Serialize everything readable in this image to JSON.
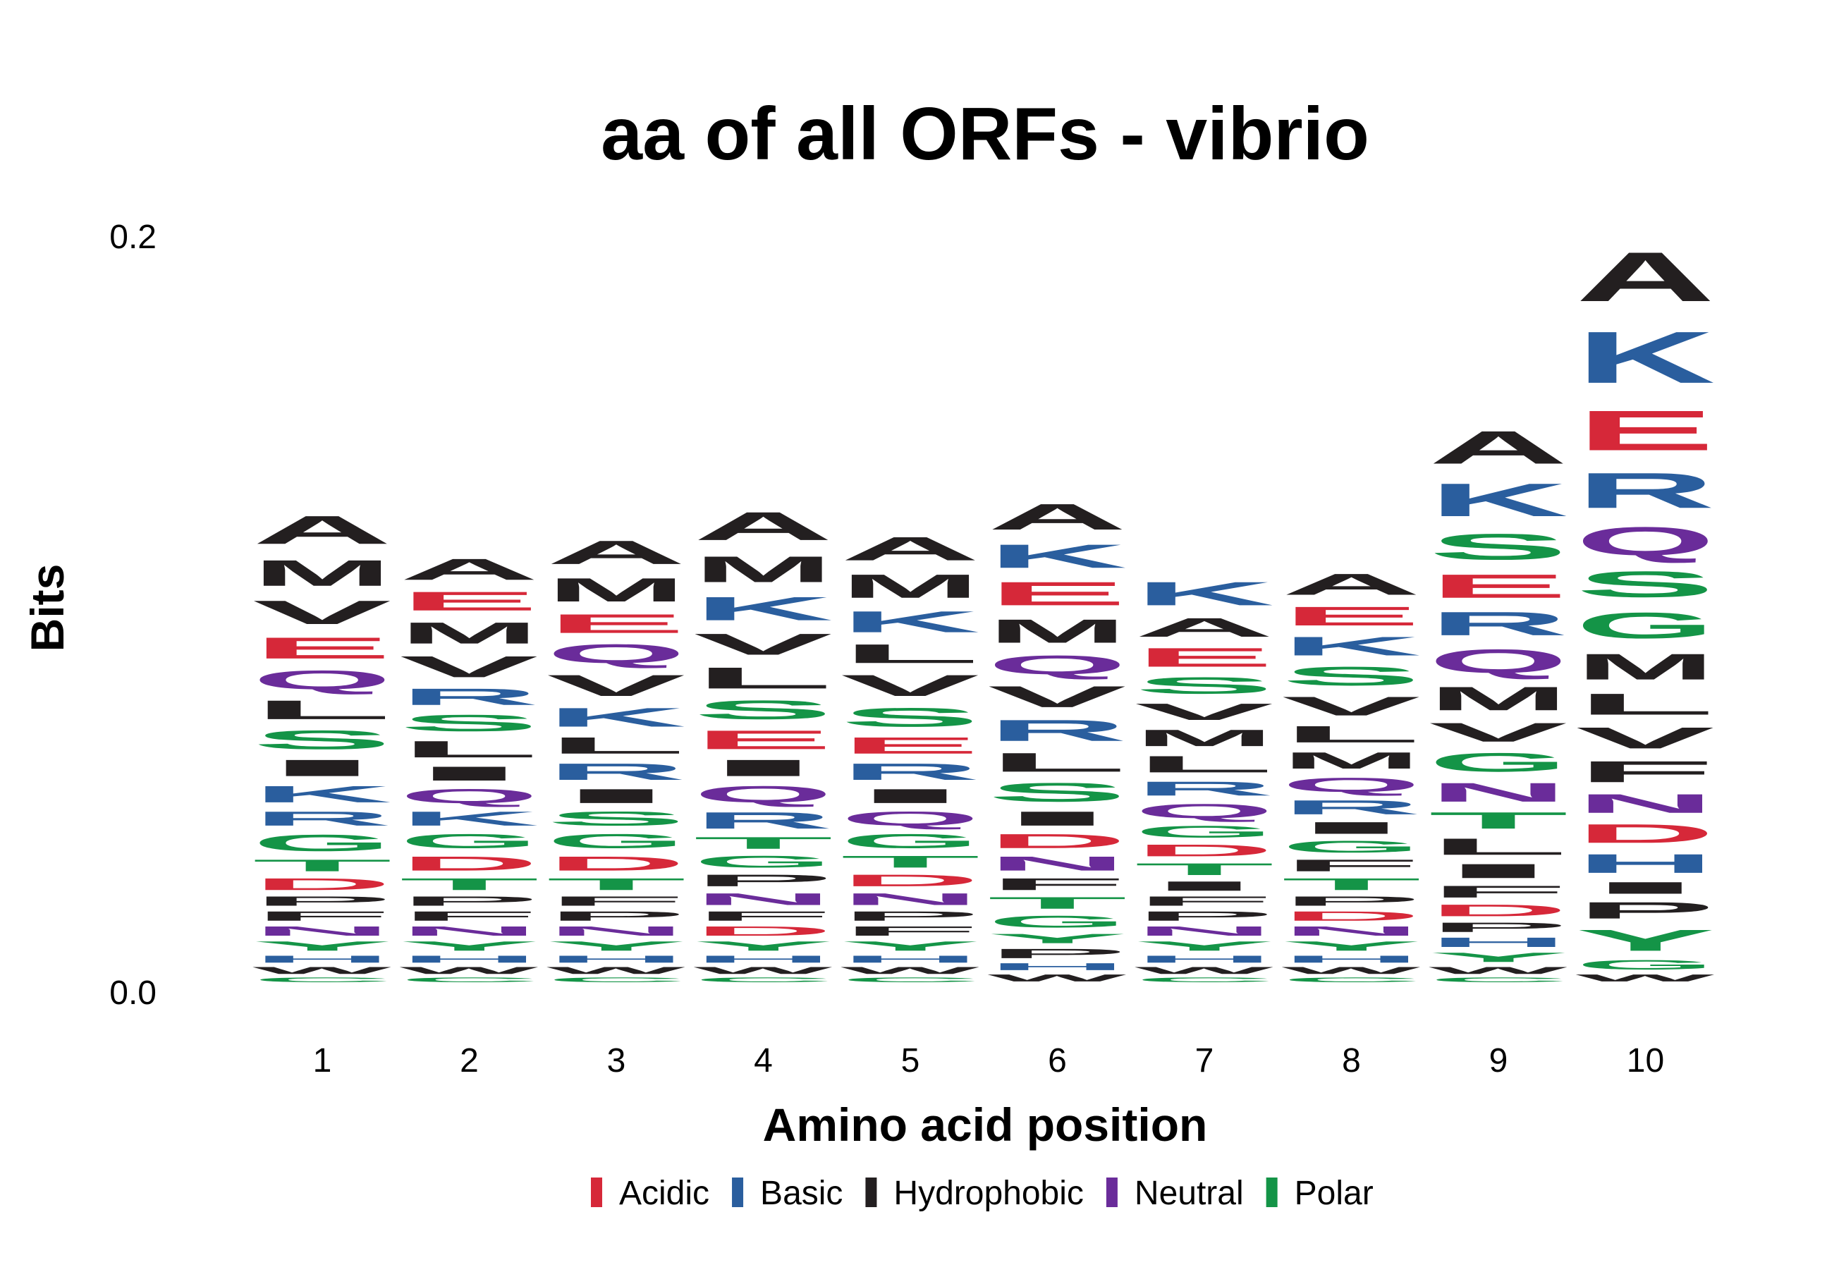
{
  "chart_data": {
    "type": "sequence-logo",
    "title": "aa of all ORFs - vibrio",
    "xlabel": "Amino acid position",
    "ylabel": "Bits",
    "ylim": [
      0,
      0.2
    ],
    "y_ticks": [
      "0.0",
      "0.2"
    ],
    "positions": [
      "1",
      "2",
      "3",
      "4",
      "5",
      "6",
      "7",
      "8",
      "9",
      "10"
    ],
    "color_scheme": [
      {
        "name": "Acidic",
        "color": "#d62839"
      },
      {
        "name": "Basic",
        "color": "#2a5e9e"
      },
      {
        "name": "Hydrophobic",
        "color": "#231f20"
      },
      {
        "name": "Neutral",
        "color": "#6a2c9a"
      },
      {
        "name": "Polar",
        "color": "#149447"
      }
    ],
    "residue_classes": {
      "D": "Acidic",
      "E": "Acidic",
      "K": "Basic",
      "R": "Basic",
      "H": "Basic",
      "A": "Hydrophobic",
      "M": "Hydrophobic",
      "V": "Hydrophobic",
      "L": "Hydrophobic",
      "I": "Hydrophobic",
      "F": "Hydrophobic",
      "P": "Hydrophobic",
      "W": "Hydrophobic",
      "Q": "Neutral",
      "N": "Neutral",
      "S": "Polar",
      "T": "Polar",
      "G": "Polar",
      "Y": "Polar",
      "C": "Polar"
    },
    "stacks": [
      {
        "position": 1,
        "letters": [
          {
            "aa": "C",
            "bits": 0.002
          },
          {
            "aa": "W",
            "bits": 0.003
          },
          {
            "aa": "H",
            "bits": 0.003
          },
          {
            "aa": "Y",
            "bits": 0.004
          },
          {
            "aa": "N",
            "bits": 0.004
          },
          {
            "aa": "F",
            "bits": 0.004
          },
          {
            "aa": "P",
            "bits": 0.004
          },
          {
            "aa": "D",
            "bits": 0.005
          },
          {
            "aa": "T",
            "bits": 0.005
          },
          {
            "aa": "G",
            "bits": 0.007
          },
          {
            "aa": "R",
            "bits": 0.006
          },
          {
            "aa": "K",
            "bits": 0.007
          },
          {
            "aa": "I",
            "bits": 0.007
          },
          {
            "aa": "S",
            "bits": 0.008
          },
          {
            "aa": "L",
            "bits": 0.008
          },
          {
            "aa": "Q",
            "bits": 0.008
          },
          {
            "aa": "E",
            "bits": 0.009
          },
          {
            "aa": "V",
            "bits": 0.01
          },
          {
            "aa": "M",
            "bits": 0.011
          },
          {
            "aa": "A",
            "bits": 0.012
          }
        ]
      },
      {
        "position": 2,
        "letters": [
          {
            "aa": "C",
            "bits": 0.002
          },
          {
            "aa": "W",
            "bits": 0.003
          },
          {
            "aa": "H",
            "bits": 0.003
          },
          {
            "aa": "Y",
            "bits": 0.004
          },
          {
            "aa": "N",
            "bits": 0.004
          },
          {
            "aa": "F",
            "bits": 0.004
          },
          {
            "aa": "P",
            "bits": 0.004
          },
          {
            "aa": "T",
            "bits": 0.005
          },
          {
            "aa": "D",
            "bits": 0.006
          },
          {
            "aa": "G",
            "bits": 0.006
          },
          {
            "aa": "K",
            "bits": 0.006
          },
          {
            "aa": "Q",
            "bits": 0.006
          },
          {
            "aa": "I",
            "bits": 0.006
          },
          {
            "aa": "L",
            "bits": 0.007
          },
          {
            "aa": "S",
            "bits": 0.007
          },
          {
            "aa": "R",
            "bits": 0.007
          },
          {
            "aa": "V",
            "bits": 0.009
          },
          {
            "aa": "M",
            "bits": 0.009
          },
          {
            "aa": "E",
            "bits": 0.008
          },
          {
            "aa": "A",
            "bits": 0.009
          }
        ]
      },
      {
        "position": 3,
        "letters": [
          {
            "aa": "C",
            "bits": 0.002
          },
          {
            "aa": "W",
            "bits": 0.003
          },
          {
            "aa": "H",
            "bits": 0.003
          },
          {
            "aa": "Y",
            "bits": 0.004
          },
          {
            "aa": "N",
            "bits": 0.004
          },
          {
            "aa": "P",
            "bits": 0.004
          },
          {
            "aa": "F",
            "bits": 0.004
          },
          {
            "aa": "T",
            "bits": 0.005
          },
          {
            "aa": "D",
            "bits": 0.006
          },
          {
            "aa": "G",
            "bits": 0.006
          },
          {
            "aa": "S",
            "bits": 0.006
          },
          {
            "aa": "I",
            "bits": 0.006
          },
          {
            "aa": "R",
            "bits": 0.007
          },
          {
            "aa": "L",
            "bits": 0.007
          },
          {
            "aa": "K",
            "bits": 0.008
          },
          {
            "aa": "V",
            "bits": 0.009
          },
          {
            "aa": "Q",
            "bits": 0.008
          },
          {
            "aa": "E",
            "bits": 0.008
          },
          {
            "aa": "M",
            "bits": 0.01
          },
          {
            "aa": "A",
            "bits": 0.01
          }
        ]
      },
      {
        "position": 4,
        "letters": [
          {
            "aa": "C",
            "bits": 0.002
          },
          {
            "aa": "W",
            "bits": 0.003
          },
          {
            "aa": "H",
            "bits": 0.003
          },
          {
            "aa": "Y",
            "bits": 0.004
          },
          {
            "aa": "D",
            "bits": 0.004
          },
          {
            "aa": "F",
            "bits": 0.004
          },
          {
            "aa": "N",
            "bits": 0.005
          },
          {
            "aa": "P",
            "bits": 0.005
          },
          {
            "aa": "G",
            "bits": 0.005
          },
          {
            "aa": "T",
            "bits": 0.005
          },
          {
            "aa": "R",
            "bits": 0.007
          },
          {
            "aa": "Q",
            "bits": 0.007
          },
          {
            "aa": "I",
            "bits": 0.007
          },
          {
            "aa": "E",
            "bits": 0.008
          },
          {
            "aa": "S",
            "bits": 0.008
          },
          {
            "aa": "L",
            "bits": 0.009
          },
          {
            "aa": "V",
            "bits": 0.009
          },
          {
            "aa": "K",
            "bits": 0.01
          },
          {
            "aa": "M",
            "bits": 0.011
          },
          {
            "aa": "A",
            "bits": 0.012
          }
        ]
      },
      {
        "position": 5,
        "letters": [
          {
            "aa": "C",
            "bits": 0.002
          },
          {
            "aa": "W",
            "bits": 0.003
          },
          {
            "aa": "H",
            "bits": 0.003
          },
          {
            "aa": "Y",
            "bits": 0.004
          },
          {
            "aa": "F",
            "bits": 0.004
          },
          {
            "aa": "P",
            "bits": 0.004
          },
          {
            "aa": "N",
            "bits": 0.005
          },
          {
            "aa": "D",
            "bits": 0.005
          },
          {
            "aa": "T",
            "bits": 0.005
          },
          {
            "aa": "G",
            "bits": 0.006
          },
          {
            "aa": "Q",
            "bits": 0.006
          },
          {
            "aa": "I",
            "bits": 0.006
          },
          {
            "aa": "R",
            "bits": 0.007
          },
          {
            "aa": "E",
            "bits": 0.007
          },
          {
            "aa": "S",
            "bits": 0.008
          },
          {
            "aa": "V",
            "bits": 0.009
          },
          {
            "aa": "L",
            "bits": 0.008
          },
          {
            "aa": "K",
            "bits": 0.009
          },
          {
            "aa": "M",
            "bits": 0.01
          },
          {
            "aa": "A",
            "bits": 0.01
          }
        ]
      },
      {
        "position": 6,
        "letters": [
          {
            "aa": "W",
            "bits": 0.003
          },
          {
            "aa": "H",
            "bits": 0.003
          },
          {
            "aa": "P",
            "bits": 0.004
          },
          {
            "aa": "Y",
            "bits": 0.004
          },
          {
            "aa": "G",
            "bits": 0.005
          },
          {
            "aa": "T",
            "bits": 0.005
          },
          {
            "aa": "F",
            "bits": 0.005
          },
          {
            "aa": "N",
            "bits": 0.006
          },
          {
            "aa": "D",
            "bits": 0.006
          },
          {
            "aa": "I",
            "bits": 0.006
          },
          {
            "aa": "S",
            "bits": 0.008
          },
          {
            "aa": "L",
            "bits": 0.008
          },
          {
            "aa": "R",
            "bits": 0.009
          },
          {
            "aa": "V",
            "bits": 0.009
          },
          {
            "aa": "Q",
            "bits": 0.008
          },
          {
            "aa": "M",
            "bits": 0.01
          },
          {
            "aa": "E",
            "bits": 0.01
          },
          {
            "aa": "K",
            "bits": 0.01
          },
          {
            "aa": "A",
            "bits": 0.011
          }
        ]
      },
      {
        "position": 7,
        "letters": [
          {
            "aa": "C",
            "bits": 0.002
          },
          {
            "aa": "W",
            "bits": 0.003
          },
          {
            "aa": "H",
            "bits": 0.003
          },
          {
            "aa": "Y",
            "bits": 0.004
          },
          {
            "aa": "N",
            "bits": 0.004
          },
          {
            "aa": "P",
            "bits": 0.004
          },
          {
            "aa": "F",
            "bits": 0.004
          },
          {
            "aa": "I",
            "bits": 0.004
          },
          {
            "aa": "T",
            "bits": 0.005
          },
          {
            "aa": "D",
            "bits": 0.005
          },
          {
            "aa": "G",
            "bits": 0.005
          },
          {
            "aa": "Q",
            "bits": 0.006
          },
          {
            "aa": "R",
            "bits": 0.006
          },
          {
            "aa": "L",
            "bits": 0.007
          },
          {
            "aa": "M",
            "bits": 0.007
          },
          {
            "aa": "V",
            "bits": 0.007
          },
          {
            "aa": "S",
            "bits": 0.007
          },
          {
            "aa": "E",
            "bits": 0.008
          },
          {
            "aa": "A",
            "bits": 0.008
          },
          {
            "aa": "K",
            "bits": 0.01
          }
        ]
      },
      {
        "position": 8,
        "letters": [
          {
            "aa": "C",
            "bits": 0.002
          },
          {
            "aa": "W",
            "bits": 0.003
          },
          {
            "aa": "H",
            "bits": 0.003
          },
          {
            "aa": "Y",
            "bits": 0.004
          },
          {
            "aa": "N",
            "bits": 0.004
          },
          {
            "aa": "D",
            "bits": 0.004
          },
          {
            "aa": "P",
            "bits": 0.004
          },
          {
            "aa": "T",
            "bits": 0.005
          },
          {
            "aa": "F",
            "bits": 0.005
          },
          {
            "aa": "G",
            "bits": 0.005
          },
          {
            "aa": "I",
            "bits": 0.005
          },
          {
            "aa": "R",
            "bits": 0.006
          },
          {
            "aa": "Q",
            "bits": 0.006
          },
          {
            "aa": "M",
            "bits": 0.007
          },
          {
            "aa": "L",
            "bits": 0.007
          },
          {
            "aa": "V",
            "bits": 0.008
          },
          {
            "aa": "S",
            "bits": 0.008
          },
          {
            "aa": "K",
            "bits": 0.008
          },
          {
            "aa": "E",
            "bits": 0.008
          },
          {
            "aa": "A",
            "bits": 0.009
          }
        ]
      },
      {
        "position": 9,
        "letters": [
          {
            "aa": "C",
            "bits": 0.002
          },
          {
            "aa": "W",
            "bits": 0.003
          },
          {
            "aa": "Y",
            "bits": 0.004
          },
          {
            "aa": "H",
            "bits": 0.004
          },
          {
            "aa": "P",
            "bits": 0.004
          },
          {
            "aa": "D",
            "bits": 0.005
          },
          {
            "aa": "F",
            "bits": 0.005
          },
          {
            "aa": "I",
            "bits": 0.006
          },
          {
            "aa": "L",
            "bits": 0.007
          },
          {
            "aa": "T",
            "bits": 0.007
          },
          {
            "aa": "N",
            "bits": 0.008
          },
          {
            "aa": "G",
            "bits": 0.008
          },
          {
            "aa": "V",
            "bits": 0.008
          },
          {
            "aa": "M",
            "bits": 0.01
          },
          {
            "aa": "Q",
            "bits": 0.01
          },
          {
            "aa": "R",
            "bits": 0.01
          },
          {
            "aa": "E",
            "bits": 0.01
          },
          {
            "aa": "S",
            "bits": 0.011
          },
          {
            "aa": "K",
            "bits": 0.014
          },
          {
            "aa": "A",
            "bits": 0.014
          }
        ]
      },
      {
        "position": 10,
        "letters": [
          {
            "aa": "W",
            "bits": 0.003
          },
          {
            "aa": "G",
            "bits": 0.004
          },
          {
            "aa": "Y",
            "bits": 0.009
          },
          {
            "aa": "P",
            "bits": 0.007
          },
          {
            "aa": "I",
            "bits": 0.005
          },
          {
            "aa": "H",
            "bits": 0.008
          },
          {
            "aa": "D",
            "bits": 0.008
          },
          {
            "aa": "N",
            "bits": 0.008
          },
          {
            "aa": "F",
            "bits": 0.009
          },
          {
            "aa": "V",
            "bits": 0.009
          },
          {
            "aa": "L",
            "bits": 0.009
          },
          {
            "aa": "M",
            "bits": 0.011
          },
          {
            "aa": "G",
            "bits": 0.011
          },
          {
            "aa": "S",
            "bits": 0.011
          },
          {
            "aa": "Q",
            "bits": 0.012
          },
          {
            "aa": "R",
            "bits": 0.015
          },
          {
            "aa": "E",
            "bits": 0.017
          },
          {
            "aa": "K",
            "bits": 0.022
          },
          {
            "aa": "A",
            "bits": 0.021
          }
        ]
      }
    ]
  }
}
